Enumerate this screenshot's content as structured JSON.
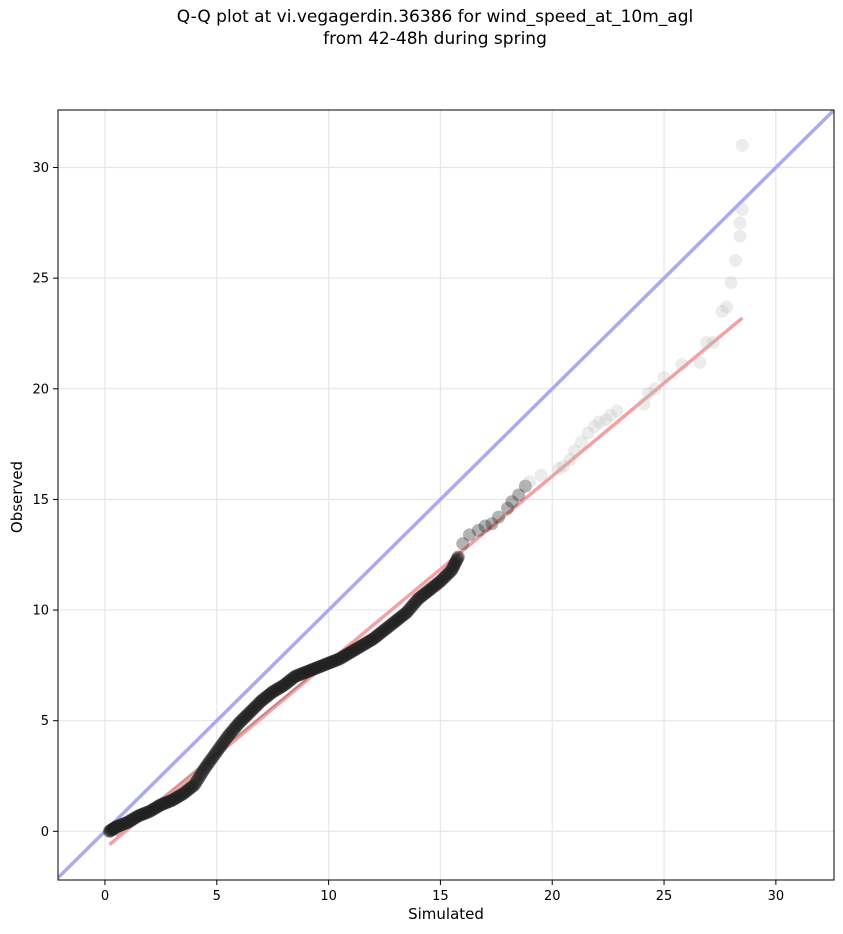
{
  "chart_data": {
    "type": "scatter",
    "title_line1": "Q-Q plot at vi.vegagerdin.36386 for wind_speed_at_10m_agl",
    "title_line2": "from 42-48h during spring",
    "xlabel": "Simulated",
    "ylabel": "Observed",
    "xlim": [
      -2.1,
      32.6
    ],
    "ylim": [
      -2.2,
      32.6
    ],
    "xticks": [
      0,
      5,
      10,
      15,
      20,
      25,
      30
    ],
    "yticks": [
      0,
      5,
      10,
      15,
      20,
      25,
      30
    ],
    "grid": true,
    "colors": {
      "identity_line": "#aaaaf0",
      "fit_line": "#f3a2a2",
      "points_dense": "#222222",
      "points_sparse": "#bbbbbb"
    },
    "reference_line": {
      "name": "identity",
      "from": [
        -2.1,
        -2.1
      ],
      "to": [
        32.6,
        32.6
      ]
    },
    "fit_line": {
      "from": [
        0.2,
        -0.6
      ],
      "to": [
        28.5,
        23.2
      ]
    },
    "quantiles_sim": [
      0.2,
      0.5,
      1.0,
      1.5,
      2.0,
      2.5,
      3.0,
      3.5,
      4.0,
      4.5,
      5.0,
      5.5,
      6.0,
      6.5,
      7.0,
      7.5,
      8.0,
      8.5,
      9.0,
      9.5,
      10.0,
      10.5,
      11.0,
      11.5,
      12.0,
      12.5,
      13.0,
      13.5,
      14.0,
      14.5,
      15.0,
      15.5,
      15.8,
      16.0,
      16.3,
      16.7,
      17.0,
      17.3,
      17.6,
      18.0,
      18.2,
      18.5,
      18.8,
      19.0,
      19.5,
      20.3,
      20.5,
      20.8,
      21.0,
      21.3,
      21.6,
      21.9,
      22.1,
      22.4,
      22.6,
      22.9,
      24.1,
      24.3,
      24.6,
      25.0,
      25.8,
      26.6,
      26.9,
      27.2,
      27.6,
      27.8,
      28.0,
      28.2,
      28.4,
      28.4,
      28.5,
      28.5
    ],
    "quantiles_obs": [
      0.0,
      0.2,
      0.4,
      0.7,
      0.9,
      1.2,
      1.4,
      1.7,
      2.1,
      2.9,
      3.6,
      4.3,
      4.9,
      5.4,
      5.9,
      6.3,
      6.6,
      7.0,
      7.2,
      7.4,
      7.6,
      7.8,
      8.1,
      8.4,
      8.7,
      9.1,
      9.5,
      9.9,
      10.5,
      10.9,
      11.3,
      11.8,
      12.4,
      13.0,
      13.4,
      13.6,
      13.8,
      13.9,
      14.2,
      14.6,
      14.9,
      15.2,
      15.6,
      15.8,
      16.1,
      16.4,
      16.5,
      16.8,
      17.2,
      17.6,
      18.0,
      18.3,
      18.5,
      18.6,
      18.8,
      19.0,
      19.3,
      19.8,
      20.0,
      20.5,
      21.1,
      21.2,
      22.1,
      22.1,
      23.5,
      23.7,
      24.8,
      25.8,
      26.9,
      27.5,
      28.1,
      31.0
    ]
  }
}
